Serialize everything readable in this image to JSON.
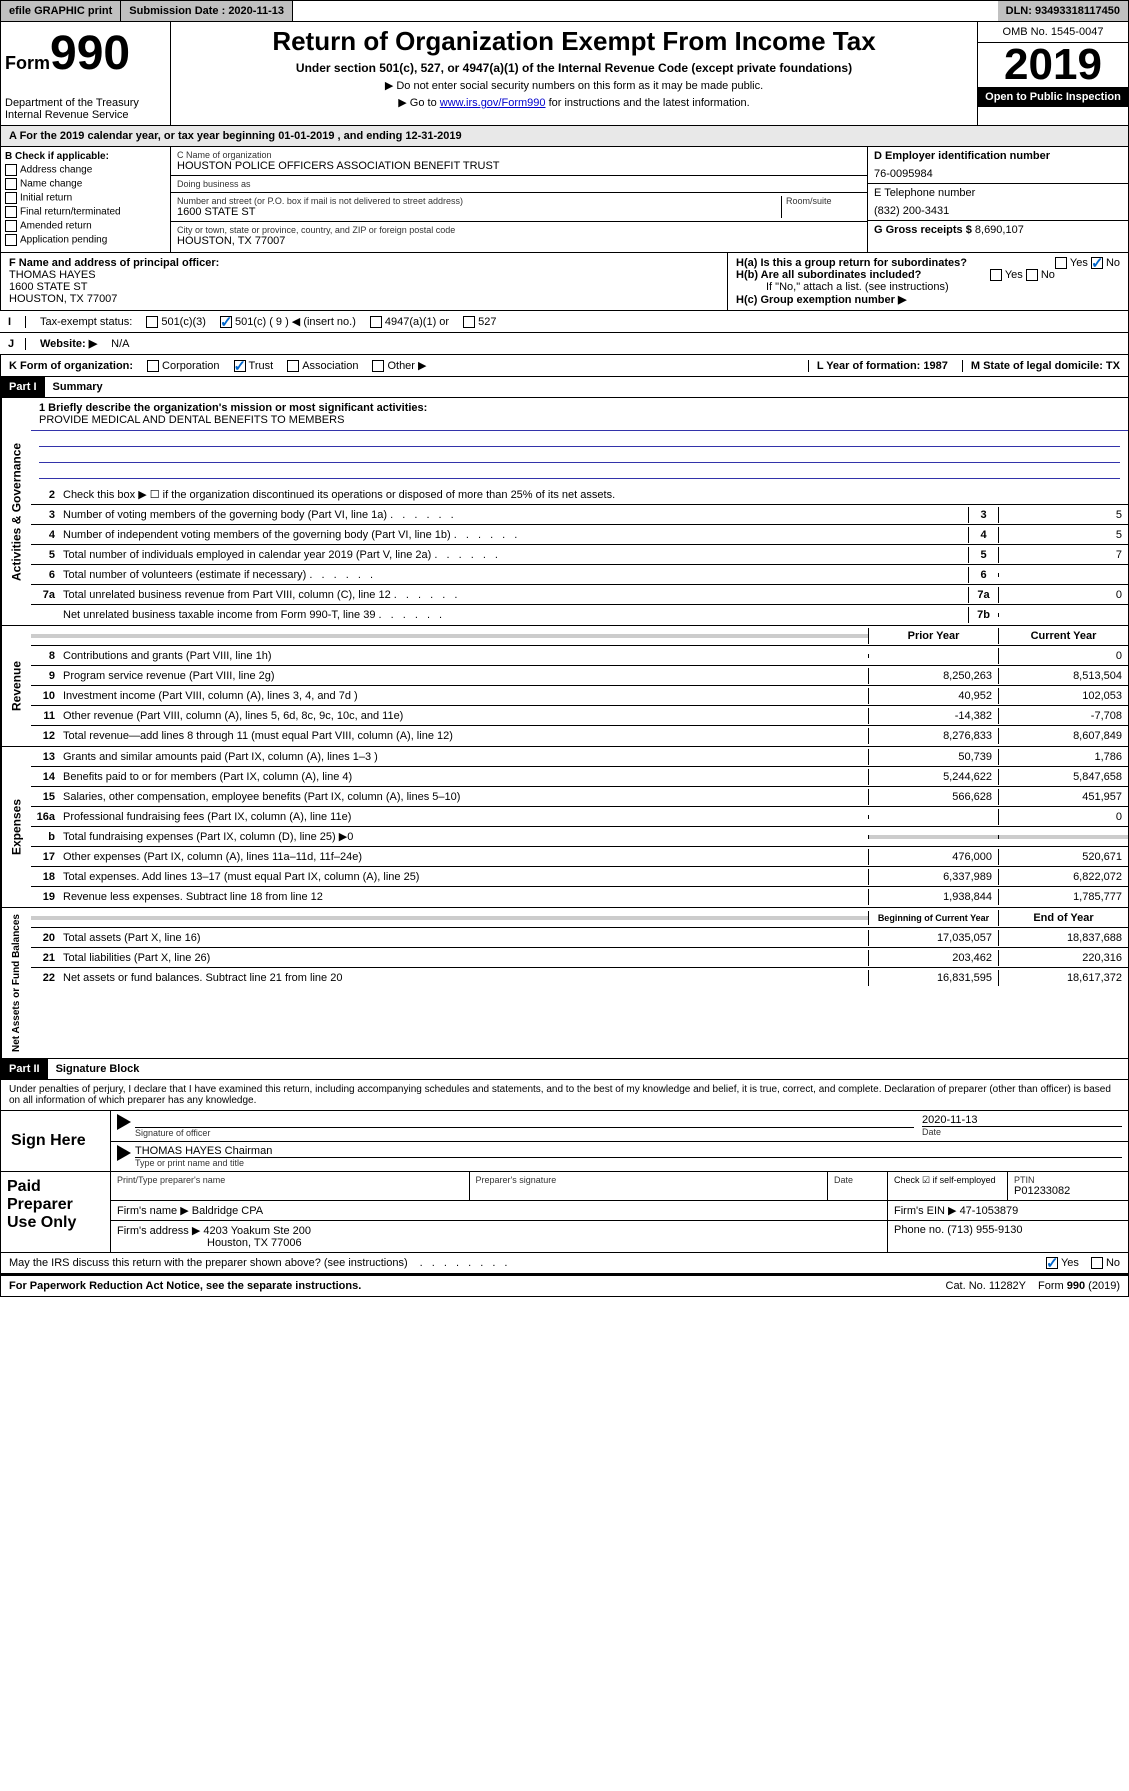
{
  "topbar": {
    "efile": "efile GRAPHIC print",
    "sub_label": "Submission Date : 2020-11-13",
    "dln": "DLN: 93493318117450"
  },
  "header": {
    "form_label": "Form",
    "form_num": "990",
    "dept": "Department of the Treasury\nInternal Revenue Service",
    "title": "Return of Organization Exempt From Income Tax",
    "sub": "Under section 501(c), 527, or 4947(a)(1) of the Internal Revenue Code (except private foundations)",
    "note1": "▶ Do not enter social security numbers on this form as it may be made public.",
    "note2_pre": "▶ Go to ",
    "note2_link": "www.irs.gov/Form990",
    "note2_post": " for instructions and the latest information.",
    "omb": "OMB No. 1545-0047",
    "year": "2019",
    "inspect": "Open to Public Inspection"
  },
  "period": "A For the 2019 calendar year, or tax year beginning 01-01-2019   , and ending 12-31-2019",
  "block_b": {
    "label": "B Check if applicable:",
    "opts": [
      "Address change",
      "Name change",
      "Initial return",
      "Final return/terminated",
      "Amended return",
      "Application pending"
    ]
  },
  "block_c": {
    "name_label": "C Name of organization",
    "name": "HOUSTON POLICE OFFICERS ASSOCIATION BENEFIT TRUST",
    "dba_label": "Doing business as",
    "addr_label": "Number and street (or P.O. box if mail is not delivered to street address)",
    "room_label": "Room/suite",
    "addr": "1600 STATE ST",
    "city_label": "City or town, state or province, country, and ZIP or foreign postal code",
    "city": "HOUSTON, TX  77007"
  },
  "block_d": {
    "label": "D Employer identification number",
    "ein": "76-0095984",
    "tel_label": "E Telephone number",
    "tel": "(832) 200-3431",
    "gross_label": "G Gross receipts $",
    "gross": "8,690,107"
  },
  "block_f": {
    "label": "F Name and address of principal officer:",
    "name": "THOMAS HAYES",
    "addr1": "1600 STATE ST",
    "addr2": "HOUSTON, TX  77007"
  },
  "block_h": {
    "ha": "H(a)  Is this a group return for subordinates?",
    "hb": "H(b)  Are all subordinates included?",
    "hb_note": "If \"No,\" attach a list. (see instructions)",
    "hc": "H(c)  Group exemption number ▶"
  },
  "tax_status": {
    "label": "Tax-exempt status:",
    "opts": [
      "501(c)(3)",
      "501(c) ( 9 ) ◀ (insert no.)",
      "4947(a)(1) or",
      "527"
    ],
    "checked": 1
  },
  "website": {
    "label_i": "I",
    "label_j": "J",
    "label": "Website: ▶",
    "val": "N/A"
  },
  "k_row": {
    "label": "K Form of organization:",
    "opts": [
      "Corporation",
      "Trust",
      "Association",
      "Other ▶"
    ],
    "checked": 1,
    "l": "L Year of formation: 1987",
    "m": "M State of legal domicile: TX"
  },
  "part1": {
    "num": "Part I",
    "title": "Summary"
  },
  "side_labels": [
    "Activities & Governance",
    "Revenue",
    "Expenses",
    "Net Assets or Fund Balances"
  ],
  "mission": {
    "q": "1  Briefly describe the organization's mission or most significant activities:",
    "a": "PROVIDE MEDICAL AND DENTAL BENEFITS TO MEMBERS"
  },
  "gov_lines": [
    {
      "n": "2",
      "t": "Check this box ▶ ☐  if the organization discontinued its operations or disposed of more than 25% of its net assets."
    },
    {
      "n": "3",
      "t": "Number of voting members of the governing body (Part VI, line 1a)",
      "box": "3",
      "v": "5"
    },
    {
      "n": "4",
      "t": "Number of independent voting members of the governing body (Part VI, line 1b)",
      "box": "4",
      "v": "5"
    },
    {
      "n": "5",
      "t": "Total number of individuals employed in calendar year 2019 (Part V, line 2a)",
      "box": "5",
      "v": "7"
    },
    {
      "n": "6",
      "t": "Total number of volunteers (estimate if necessary)",
      "box": "6",
      "v": ""
    },
    {
      "n": "7a",
      "t": "Total unrelated business revenue from Part VIII, column (C), line 12",
      "box": "7a",
      "v": "0"
    },
    {
      "n": "",
      "t": "Net unrelated business taxable income from Form 990-T, line 39",
      "box": "7b",
      "v": ""
    }
  ],
  "two_col_hdr": {
    "prior": "Prior Year",
    "current": "Current Year",
    "begin": "Beginning of Current Year",
    "end": "End of Year"
  },
  "rev_lines": [
    {
      "n": "8",
      "t": "Contributions and grants (Part VIII, line 1h)",
      "p": "",
      "c": "0"
    },
    {
      "n": "9",
      "t": "Program service revenue (Part VIII, line 2g)",
      "p": "8,250,263",
      "c": "8,513,504"
    },
    {
      "n": "10",
      "t": "Investment income (Part VIII, column (A), lines 3, 4, and 7d )",
      "p": "40,952",
      "c": "102,053"
    },
    {
      "n": "11",
      "t": "Other revenue (Part VIII, column (A), lines 5, 6d, 8c, 9c, 10c, and 11e)",
      "p": "-14,382",
      "c": "-7,708"
    },
    {
      "n": "12",
      "t": "Total revenue—add lines 8 through 11 (must equal Part VIII, column (A), line 12)",
      "p": "8,276,833",
      "c": "8,607,849"
    }
  ],
  "exp_lines": [
    {
      "n": "13",
      "t": "Grants and similar amounts paid (Part IX, column (A), lines 1–3 )",
      "p": "50,739",
      "c": "1,786"
    },
    {
      "n": "14",
      "t": "Benefits paid to or for members (Part IX, column (A), line 4)",
      "p": "5,244,622",
      "c": "5,847,658"
    },
    {
      "n": "15",
      "t": "Salaries, other compensation, employee benefits (Part IX, column (A), lines 5–10)",
      "p": "566,628",
      "c": "451,957"
    },
    {
      "n": "16a",
      "t": "Professional fundraising fees (Part IX, column (A), line 11e)",
      "p": "",
      "c": "0"
    },
    {
      "n": "b",
      "t": "Total fundraising expenses (Part IX, column (D), line 25) ▶0",
      "p": "",
      "c": "",
      "grey": true
    },
    {
      "n": "17",
      "t": "Other expenses (Part IX, column (A), lines 11a–11d, 11f–24e)",
      "p": "476,000",
      "c": "520,671"
    },
    {
      "n": "18",
      "t": "Total expenses. Add lines 13–17 (must equal Part IX, column (A), line 25)",
      "p": "6,337,989",
      "c": "6,822,072"
    },
    {
      "n": "19",
      "t": "Revenue less expenses. Subtract line 18 from line 12",
      "p": "1,938,844",
      "c": "1,785,777"
    }
  ],
  "net_lines": [
    {
      "n": "20",
      "t": "Total assets (Part X, line 16)",
      "p": "17,035,057",
      "c": "18,837,688"
    },
    {
      "n": "21",
      "t": "Total liabilities (Part X, line 26)",
      "p": "203,462",
      "c": "220,316"
    },
    {
      "n": "22",
      "t": "Net assets or fund balances. Subtract line 21 from line 20",
      "p": "16,831,595",
      "c": "18,617,372"
    }
  ],
  "part2": {
    "num": "Part II",
    "title": "Signature Block"
  },
  "perjury": "Under penalties of perjury, I declare that I have examined this return, including accompanying schedules and statements, and to the best of my knowledge and belief, it is true, correct, and complete. Declaration of preparer (other than officer) is based on all information of which preparer has any knowledge.",
  "sign": {
    "here": "Sign Here",
    "sig_label": "Signature of officer",
    "date": "2020-11-13",
    "date_label": "Date",
    "name": "THOMAS HAYES Chairman",
    "name_label": "Type or print name and title"
  },
  "prep": {
    "label": "Paid Preparer Use Only",
    "h1": "Print/Type preparer's name",
    "h2": "Preparer's signature",
    "h3": "Date",
    "h4": "Check ☑ if self-employed",
    "h5": "PTIN",
    "ptin": "P01233082",
    "firm_label": "Firm's name    ▶",
    "firm": "Baldridge CPA",
    "ein_label": "Firm's EIN ▶",
    "ein": "47-1053879",
    "addr_label": "Firm's address ▶",
    "addr": "4203 Yoakum Ste 200",
    "city": "Houston, TX  77006",
    "phone_label": "Phone no.",
    "phone": "(713) 955-9130"
  },
  "discuss": "May the IRS discuss this return with the preparer shown above? (see instructions)",
  "footer": {
    "pra": "For Paperwork Reduction Act Notice, see the separate instructions.",
    "cat": "Cat. No. 11282Y",
    "form": "Form 990 (2019)"
  },
  "yes": "Yes",
  "no": "No"
}
